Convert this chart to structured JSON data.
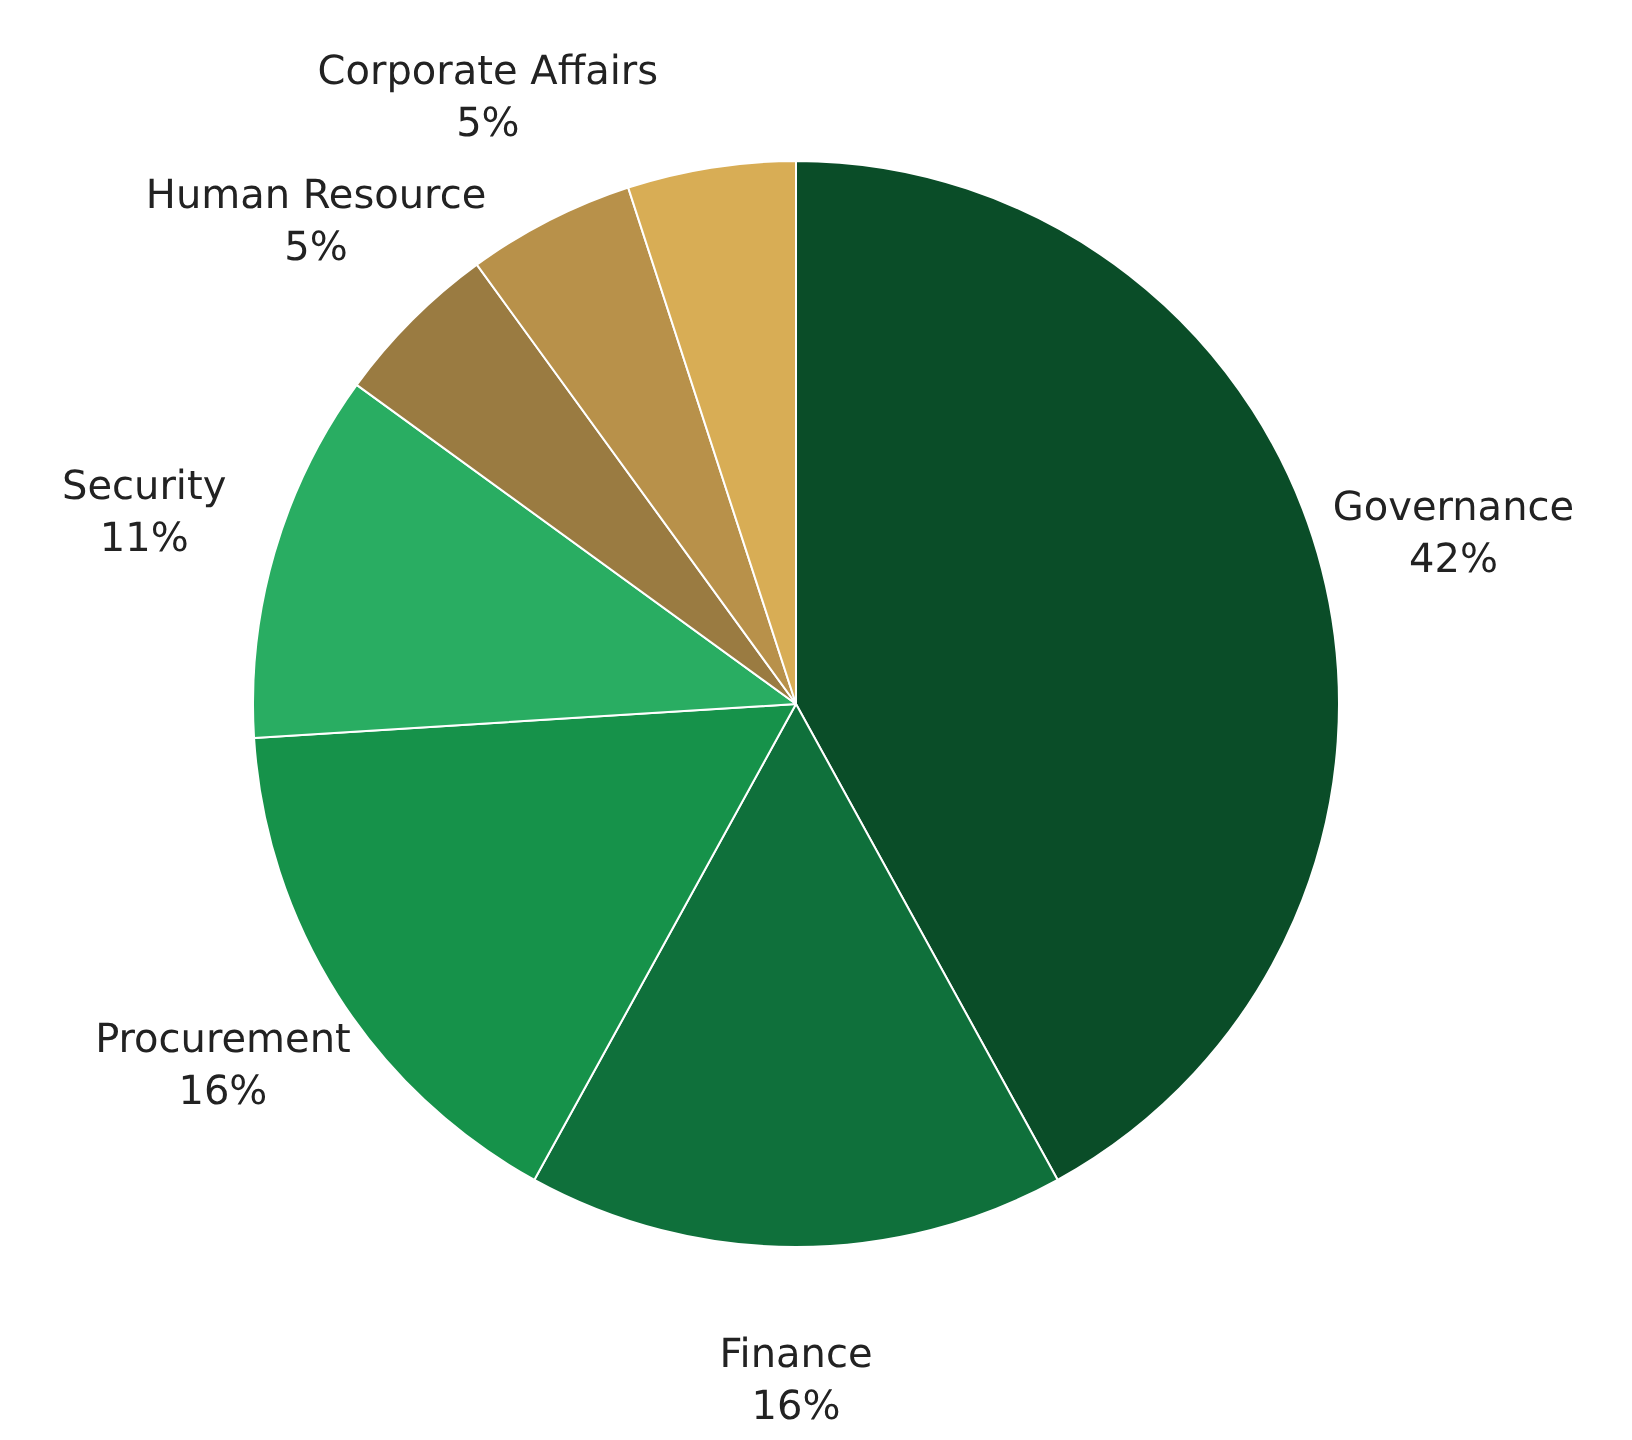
{
  "chart_data": {
    "type": "pie",
    "categories": [
      "Governance",
      "Finance",
      "Procurement",
      "Security",
      "Human Resource",
      "Corporate Affairs",
      null
    ],
    "values": [
      42,
      16,
      16,
      11,
      5,
      5,
      5
    ],
    "colors": [
      "#0a4d28",
      "#0f703b",
      "#16924a",
      "#29ad62",
      "#9a7b41",
      "#b8914a",
      "#d8ad55"
    ],
    "value_labels": [
      "42%",
      "16%",
      "16%",
      "11%",
      "5%",
      "5%",
      null
    ],
    "legend": false
  }
}
